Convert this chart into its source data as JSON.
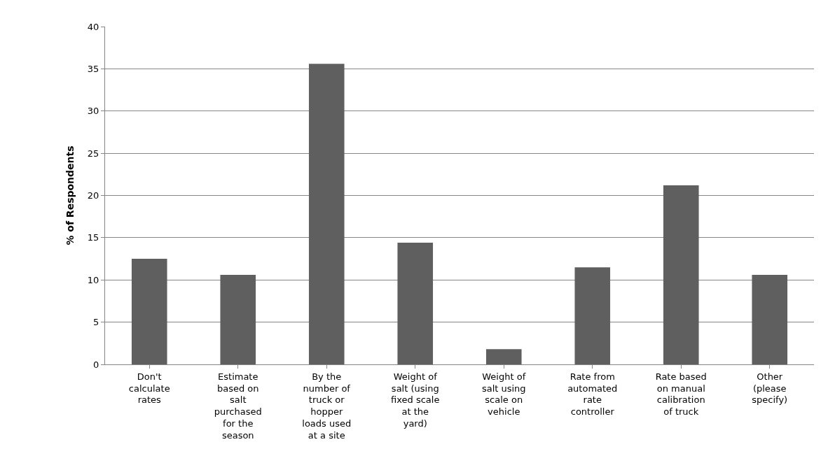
{
  "chart_data": {
    "type": "bar",
    "ylabel": "% of Respondents",
    "categories": [
      "Don't calculate rates",
      "Estimate based on salt purchased for the season",
      "By the number of truck or hopper loads used at a site",
      "Weight of salt (using fixed scale at the yard)",
      "Weight of salt using scale on vehicle",
      "Rate from automated rate controller",
      "Rate based on manual calibration of truck",
      "Other (please specify)"
    ],
    "values": [
      12.5,
      10.6,
      35.6,
      14.4,
      1.8,
      11.5,
      21.2,
      10.6
    ],
    "color": "#5f5f5f",
    "ylim": [
      0,
      40
    ],
    "yticks": [
      0,
      5,
      10,
      15,
      20,
      25,
      30,
      35,
      40
    ],
    "grid": "y",
    "legend": false
  }
}
